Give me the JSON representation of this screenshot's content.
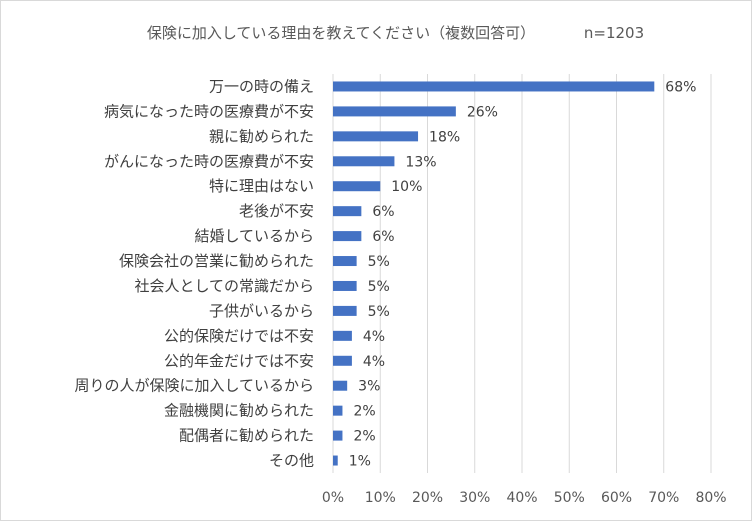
{
  "chart_data": {
    "type": "bar",
    "orientation": "horizontal",
    "title": "保険に加入している理由を教えてください（複数回答可）",
    "subtitle": "n=1203",
    "categories": [
      "万一の時の備え",
      "病気になった時の医療費が不安",
      "親に勧められた",
      "がんになった時の医療費が不安",
      "特に理由はない",
      "老後が不安",
      "結婚しているから",
      "保険会社の営業に勧められた",
      "社会人としての常識だから",
      "子供がいるから",
      "公的保険だけでは不安",
      "公的年金だけでは不安",
      "周りの人が保険に加入しているから",
      "金融機関に勧められた",
      "配偶者に勧められた",
      "その他"
    ],
    "values": [
      68,
      26,
      18,
      13,
      10,
      6,
      6,
      5,
      5,
      5,
      4,
      4,
      3,
      2,
      2,
      1
    ],
    "value_labels": [
      "68%",
      "26%",
      "18%",
      "13%",
      "10%",
      "6%",
      "6%",
      "5%",
      "5%",
      "5%",
      "4%",
      "4%",
      "3%",
      "2%",
      "2%",
      "1%"
    ],
    "x_ticks": [
      "0%",
      "10%",
      "20%",
      "30%",
      "40%",
      "50%",
      "60%",
      "70%",
      "80%"
    ],
    "xlim": [
      0,
      80
    ],
    "xlabel": "",
    "ylabel": "",
    "grid": true,
    "bar_color": "#4472c4"
  }
}
